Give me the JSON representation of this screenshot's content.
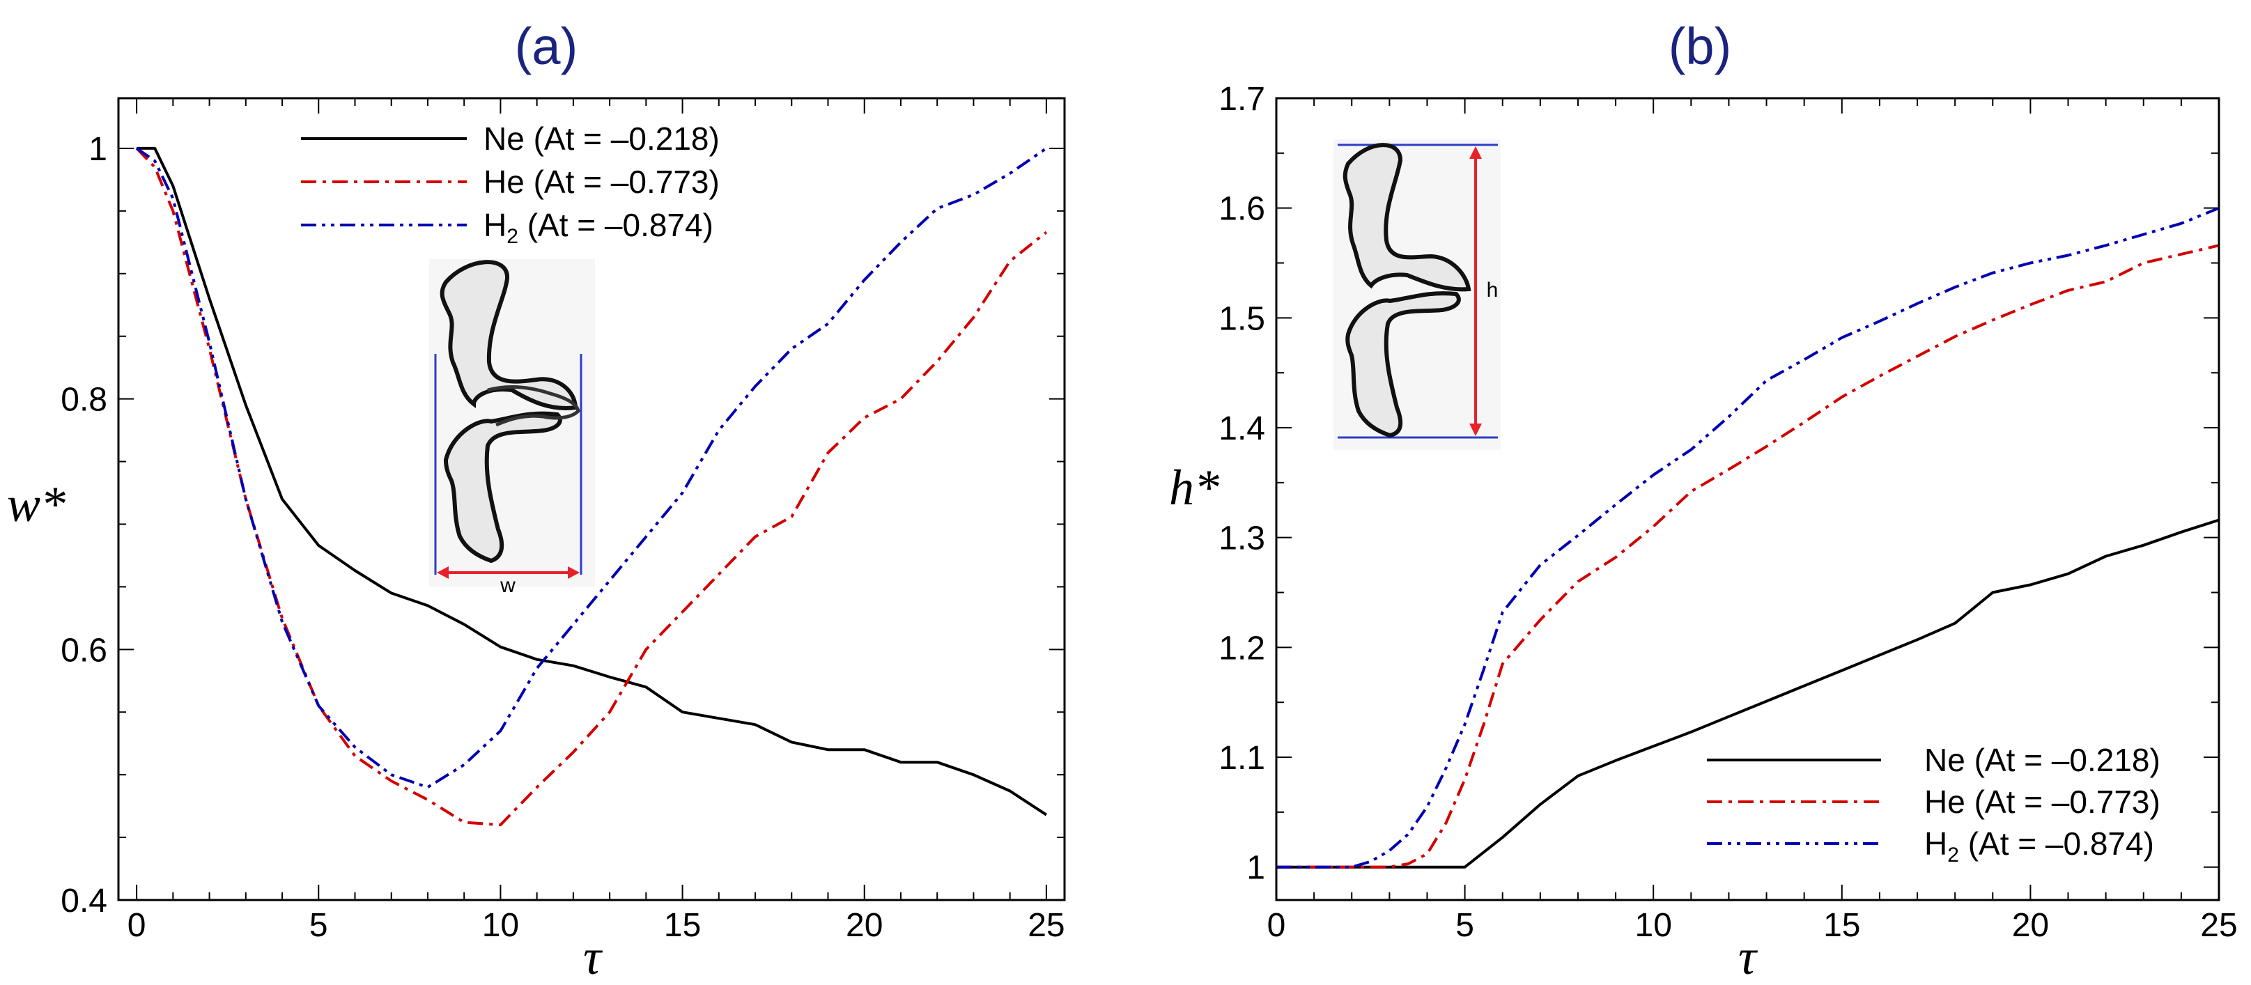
{
  "chart_data": [
    {
      "panel": "a",
      "title": "(a)",
      "type": "line",
      "xlabel": "τ",
      "ylabel": "w*",
      "xlim": [
        -0.5,
        25.5
      ],
      "ylim": [
        0.4,
        1.04
      ],
      "xticks": [
        0,
        5,
        10,
        15,
        20,
        25
      ],
      "xtick_labels": [
        "0",
        "5",
        "10",
        "15",
        "20",
        "25"
      ],
      "yticks": [
        0.4,
        0.6,
        0.8,
        1.0
      ],
      "ytick_labels": [
        "0.4",
        "0.6",
        "0.8",
        "1"
      ],
      "legend_position": "top-center",
      "inset": "w",
      "series": [
        {
          "name": "Ne (At = –0.218)",
          "legend_main": "Ne (At = –0.218)",
          "legend_sub": "",
          "legend_tail": "",
          "color": "#000000",
          "style": "solid",
          "x": [
            0,
            0.5,
            1,
            2,
            3,
            4,
            5,
            6,
            7,
            8,
            9,
            10,
            11,
            12,
            13,
            14,
            15,
            16,
            17,
            18,
            19,
            20,
            21,
            22,
            23,
            24,
            25
          ],
          "y": [
            1.0,
            1.0,
            0.97,
            0.88,
            0.795,
            0.72,
            0.683,
            0.663,
            0.645,
            0.635,
            0.62,
            0.602,
            0.592,
            0.587,
            0.578,
            0.57,
            0.55,
            0.545,
            0.54,
            0.526,
            0.52,
            0.52,
            0.51,
            0.51,
            0.5,
            0.487,
            0.468
          ]
        },
        {
          "name": "He (At = –0.773)",
          "legend_main": "He (At = –0.773)",
          "legend_sub": "",
          "legend_tail": "",
          "color": "#d40000",
          "style": "dashdot",
          "x": [
            0,
            0.5,
            1,
            2,
            3,
            4,
            5,
            6,
            7,
            8,
            9,
            10,
            11,
            12,
            13,
            14,
            15,
            16,
            17,
            18,
            19,
            20,
            21,
            22,
            23,
            24,
            25
          ],
          "y": [
            1.0,
            0.985,
            0.95,
            0.84,
            0.72,
            0.625,
            0.555,
            0.515,
            0.495,
            0.48,
            0.462,
            0.46,
            0.49,
            0.518,
            0.55,
            0.6,
            0.63,
            0.66,
            0.69,
            0.706,
            0.757,
            0.785,
            0.8,
            0.83,
            0.865,
            0.91,
            0.933
          ]
        },
        {
          "name": "H2 (At = –0.874)",
          "legend_main": "H",
          "legend_sub": "2",
          "legend_tail": " (At = –0.874)",
          "color": "#0000b3",
          "style": "dashdotdot",
          "x": [
            0,
            0.5,
            1,
            2,
            3,
            4,
            5,
            6,
            7,
            8,
            9,
            10,
            11,
            12,
            13,
            14,
            15,
            16,
            17,
            18,
            19,
            20,
            21,
            22,
            23,
            24,
            25
          ],
          "y": [
            1.0,
            0.99,
            0.96,
            0.845,
            0.72,
            0.622,
            0.555,
            0.522,
            0.5,
            0.49,
            0.508,
            0.535,
            0.585,
            0.62,
            0.655,
            0.69,
            0.725,
            0.775,
            0.81,
            0.84,
            0.86,
            0.895,
            0.925,
            0.952,
            0.963,
            0.98,
            1.0
          ]
        }
      ]
    },
    {
      "panel": "b",
      "title": "(b)",
      "type": "line",
      "xlabel": "τ",
      "ylabel": "h*",
      "xlim": [
        0,
        25
      ],
      "ylim": [
        0.97,
        1.7
      ],
      "xticks": [
        0,
        5,
        10,
        15,
        20,
        25
      ],
      "xtick_labels": [
        "0",
        "5",
        "10",
        "15",
        "20",
        "25"
      ],
      "yticks": [
        1.0,
        1.1,
        1.2,
        1.3,
        1.4,
        1.5,
        1.6,
        1.7
      ],
      "ytick_labels": [
        "1",
        "1.1",
        "1.2",
        "1.3",
        "1.4",
        "1.5",
        "1.6",
        "1.7"
      ],
      "legend_position": "bottom-right",
      "inset": "h",
      "series": [
        {
          "name": "Ne (At = –0.218)",
          "legend_main": "Ne (At = –0.218)",
          "legend_sub": "",
          "legend_tail": "",
          "color": "#000000",
          "style": "solid",
          "x": [
            0,
            2,
            4,
            5,
            6,
            7,
            8,
            9,
            10,
            11,
            12,
            13,
            14,
            15,
            16,
            17,
            18,
            19,
            20,
            21,
            22,
            23,
            24,
            25
          ],
          "y": [
            1.0,
            1.0,
            1.0,
            1.0,
            1.027,
            1.057,
            1.083,
            1.097,
            1.11,
            1.123,
            1.137,
            1.151,
            1.165,
            1.179,
            1.193,
            1.207,
            1.222,
            1.25,
            1.257,
            1.267,
            1.283,
            1.293,
            1.305,
            1.316
          ]
        },
        {
          "name": "He (At = –0.773)",
          "legend_main": "He (At = –0.773)",
          "legend_sub": "",
          "legend_tail": "",
          "color": "#d40000",
          "style": "dashdot",
          "x": [
            0,
            2,
            3,
            3.5,
            4,
            4.5,
            5,
            5.5,
            6,
            7,
            8,
            9,
            10,
            11,
            12,
            13,
            14,
            15,
            16,
            17,
            18,
            19,
            20,
            21,
            22,
            23,
            24,
            25
          ],
          "y": [
            1.0,
            1.0,
            1.0,
            1.003,
            1.012,
            1.04,
            1.08,
            1.13,
            1.185,
            1.225,
            1.26,
            1.282,
            1.31,
            1.342,
            1.362,
            1.383,
            1.405,
            1.428,
            1.447,
            1.465,
            1.483,
            1.498,
            1.512,
            1.525,
            1.533,
            1.55,
            1.558,
            1.566
          ]
        },
        {
          "name": "H2 (At = –0.874)",
          "legend_main": "H",
          "legend_sub": "2",
          "legend_tail": " (At = –0.874)",
          "color": "#0000b3",
          "style": "dashdotdot",
          "x": [
            0,
            2,
            2.5,
            3,
            3.5,
            4,
            4.5,
            5,
            5.5,
            6,
            7,
            8,
            9,
            10,
            11,
            12,
            13,
            14,
            15,
            16,
            17,
            18,
            19,
            20,
            21,
            22,
            23,
            24,
            25
          ],
          "y": [
            1.0,
            1.0,
            1.005,
            1.015,
            1.03,
            1.055,
            1.09,
            1.13,
            1.18,
            1.232,
            1.275,
            1.302,
            1.33,
            1.357,
            1.38,
            1.41,
            1.443,
            1.462,
            1.482,
            1.497,
            1.513,
            1.528,
            1.541,
            1.55,
            1.557,
            1.566,
            1.576,
            1.586,
            1.6
          ]
        }
      ]
    }
  ]
}
